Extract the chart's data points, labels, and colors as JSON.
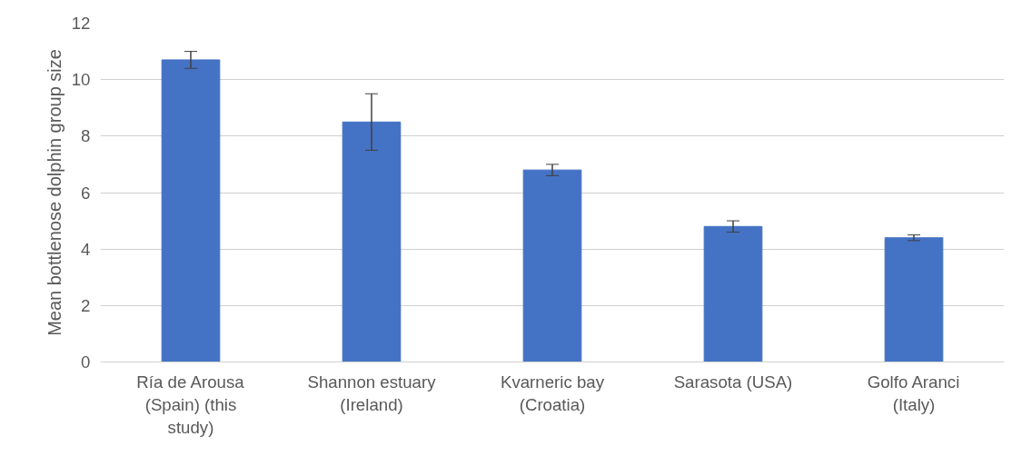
{
  "chart_data": {
    "type": "bar",
    "ylabel": "Mean bottlenose dolphin group size",
    "categories": [
      "Ría de Arousa (Spain) (this study)",
      "Shannon estuary (Ireland)",
      "Kvarneric bay (Croatia)",
      "Sarasota (USA)",
      "Golfo Aranci (Italy)"
    ],
    "values": [
      10.7,
      8.5,
      6.8,
      4.8,
      4.4
    ],
    "errors": [
      0.3,
      1.0,
      0.2,
      0.2,
      0.1
    ],
    "color": "#4472c4",
    "ylim": [
      0,
      12
    ],
    "yticks": [
      0,
      2,
      4,
      6,
      8,
      10,
      12
    ],
    "grid": "y"
  }
}
